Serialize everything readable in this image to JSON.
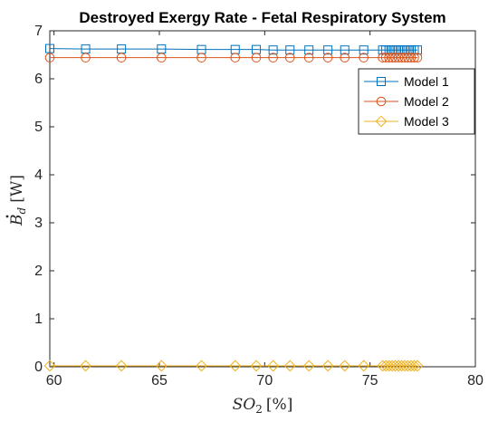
{
  "chart_data": {
    "type": "line",
    "title": "Destroyed Exergy Rate - Fetal Respiratory System",
    "xlabel": {
      "base": "SO",
      "sub": "2",
      "unit": "[%]"
    },
    "ylabel": {
      "base": "B",
      "sub": "d",
      "unit": "[W]"
    },
    "xlim": [
      59.8,
      80
    ],
    "ylim": [
      0,
      7
    ],
    "xticks": [
      "60",
      "65",
      "70",
      "75",
      "80"
    ],
    "yticks": [
      "0",
      "1",
      "2",
      "3",
      "4",
      "5",
      "6",
      "7"
    ],
    "grid": false,
    "legend_position": "top-right",
    "x": [
      59.8,
      61.5,
      63.2,
      65.1,
      67.0,
      68.6,
      69.6,
      70.4,
      71.2,
      72.1,
      73.0,
      73.8,
      74.7,
      75.6,
      75.75,
      75.9,
      76.05,
      76.2,
      76.35,
      76.5,
      76.65,
      76.8,
      76.95,
      77.1,
      77.25
    ],
    "series": [
      {
        "name": "Model 1",
        "marker": "square",
        "color": "#0072BD",
        "values": [
          6.63,
          6.62,
          6.62,
          6.62,
          6.61,
          6.61,
          6.61,
          6.6,
          6.6,
          6.6,
          6.6,
          6.6,
          6.6,
          6.6,
          6.6,
          6.6,
          6.6,
          6.6,
          6.6,
          6.6,
          6.6,
          6.6,
          6.6,
          6.6,
          6.6
        ]
      },
      {
        "name": "Model 2",
        "marker": "circle",
        "color": "#D95319",
        "values": [
          6.44,
          6.44,
          6.44,
          6.44,
          6.44,
          6.44,
          6.44,
          6.44,
          6.44,
          6.44,
          6.44,
          6.44,
          6.44,
          6.44,
          6.44,
          6.44,
          6.44,
          6.44,
          6.44,
          6.44,
          6.44,
          6.44,
          6.44,
          6.44,
          6.44
        ]
      },
      {
        "name": "Model 3",
        "marker": "diamond",
        "color": "#EDB120",
        "values": [
          0.02,
          0.02,
          0.02,
          0.02,
          0.02,
          0.02,
          0.02,
          0.02,
          0.02,
          0.02,
          0.02,
          0.02,
          0.02,
          0.02,
          0.02,
          0.02,
          0.02,
          0.02,
          0.02,
          0.02,
          0.02,
          0.02,
          0.02,
          0.02,
          0.02
        ]
      }
    ]
  }
}
